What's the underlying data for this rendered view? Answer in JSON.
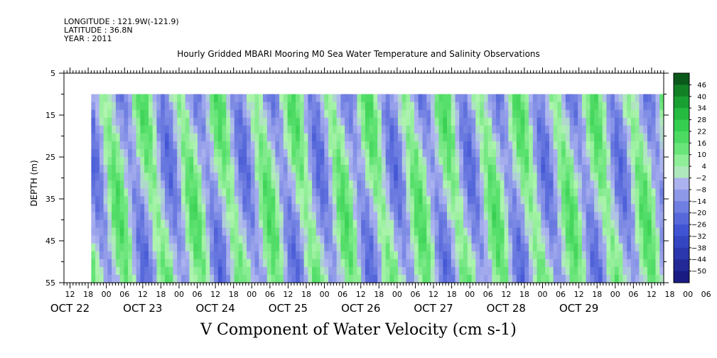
{
  "header": {
    "longitude": "LONGITUDE : 121.9W(-121.9)",
    "latitude": "LATITUDE : 36.8N",
    "year": "YEAR : 2011"
  },
  "chart_data": {
    "type": "heatmap",
    "title": "Hourly Gridded MBARI Mooring M0 Sea Water Temperature and Salinity Observations",
    "xlabel": "V Component of Water Velocity (cm s-1)",
    "ylabel": "DEPTH (m)",
    "y_ticks": [
      5,
      15,
      25,
      35,
      45,
      55
    ],
    "y_range": [
      5,
      55
    ],
    "y_reversed": true,
    "data_depth_range": [
      10,
      55
    ],
    "x_range_hours": [
      "2011-10-21T10:00",
      "2011-10-29T16:00"
    ],
    "data_start": "2011-10-21T19:00",
    "hour_tick_labels": [
      "12",
      "18",
      "00",
      "06",
      "12",
      "18",
      "00",
      "06",
      "12",
      "18",
      "00",
      "06",
      "12",
      "18",
      "00",
      "06",
      "12",
      "18",
      "00",
      "06",
      "12",
      "18",
      "00",
      "06",
      "12",
      "18",
      "00",
      "06",
      "12",
      "18",
      "00",
      "06",
      "12",
      "18",
      "00",
      "06"
    ],
    "date_labels": [
      "OCT 22",
      "OCT 23",
      "OCT 24",
      "OCT 25",
      "OCT 26",
      "OCT 27",
      "OCT 28",
      "OCT 29"
    ],
    "colorbar": {
      "levels": [
        46,
        40,
        34,
        28,
        22,
        16,
        10,
        4,
        -2,
        -8,
        -14,
        -20,
        -26,
        -32,
        -38,
        -44,
        -50
      ],
      "min": -50,
      "max": 50,
      "low_color": "#1a1a80",
      "mid_negative_color": "#a8b2f0",
      "mid_positive_color": "#a8f0a8",
      "high_color": "#0a4a14"
    },
    "pattern": "alternating tilted bands of positive (green) and negative (blue) velocity roughly every 12 hours"
  }
}
